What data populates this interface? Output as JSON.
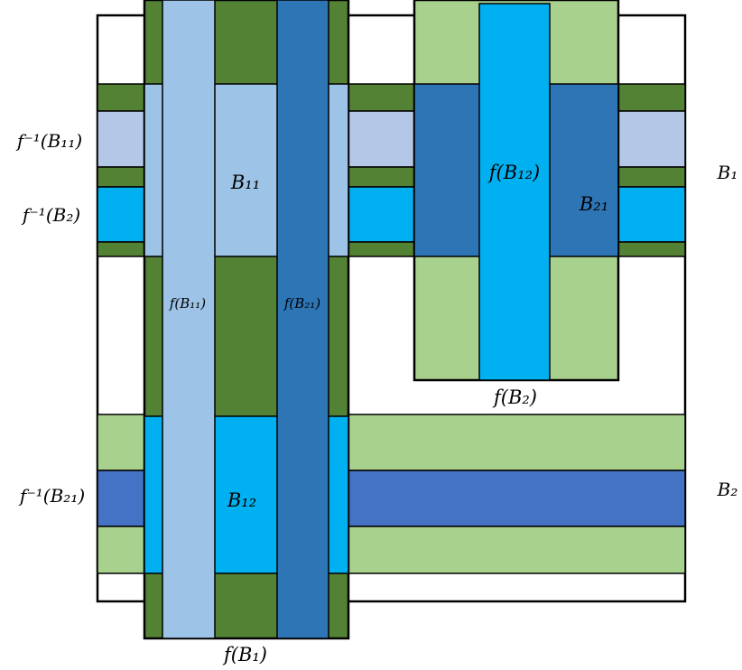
{
  "colors": {
    "dark_green": "#548235",
    "light_green": "#a9d18e",
    "light_blue": "#9dc3e6",
    "steel_blue": "#2e75b6",
    "bright_blue": "#00b0f0",
    "periwinkle": "#b4c7e7",
    "royal_blue": "#4472c4",
    "outline": "#000000"
  },
  "labels": {
    "f_inv_B11": "f⁻¹(B₁₁)",
    "f_inv_B2": "f⁻¹(B₂)",
    "f_inv_B21": "f⁻¹(B₂₁)",
    "B1": "B₁",
    "B2": "B₂",
    "B11": "B₁₁",
    "B12": "B₁₂",
    "B21": "B₂₁",
    "f_B11": "f(B₁₁)",
    "f_B21": "f(B₂₁)",
    "f_B12": "f(B₁₂)",
    "f_B2": "f(B₂)",
    "f_B1": "f(B₁)"
  }
}
